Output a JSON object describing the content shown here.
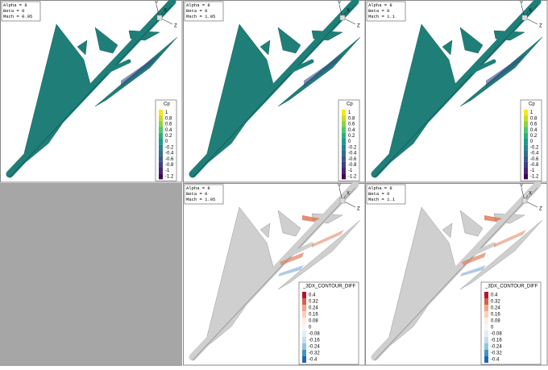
{
  "panels": [
    {
      "info": [
        "Alpha = 8",
        "Beta = 0",
        "Mach = 0.95"
      ],
      "axes": [
        "Y",
        "X",
        "Z"
      ],
      "legend": {
        "title": "Cp",
        "ticks": [
          "1",
          "0.8",
          "0.6",
          "0.4",
          "0.2",
          "0",
          "-0.2",
          "-0.4",
          "-0.6",
          "-0.8",
          "-1",
          "-1.2"
        ]
      }
    },
    {
      "info": [
        "Alpha = 8",
        "Beta = 0",
        "Mach = 1.05"
      ],
      "axes": [
        "Y",
        "X",
        "Z"
      ],
      "legend": {
        "title": "Cp",
        "ticks": [
          "1",
          "0.8",
          "0.6",
          "0.4",
          "0.2",
          "0",
          "-0.2",
          "-0.4",
          "-0.6",
          "-0.8",
          "-1",
          "-1.2"
        ]
      }
    },
    {
      "info": [
        "Alpha = 8",
        "Beta = 0",
        "Mach = 1.1"
      ],
      "axes": [
        "Y",
        "X",
        "Z"
      ],
      "legend": {
        "title": "Cp",
        "ticks": [
          "1",
          "0.8",
          "0.6",
          "0.4",
          "0.2",
          "0",
          "-0.2",
          "-0.4",
          "-0.6",
          "-0.8",
          "-1",
          "-1.2"
        ]
      }
    },
    {
      "info": [
        "Alpha = 8",
        "Beta = 0",
        "Mach = 1.05"
      ],
      "axes": [
        "Y",
        "X",
        "Z"
      ],
      "legend": {
        "title": "_3DX_CONTOUR_DIFF",
        "ticks": [
          "0.4",
          "0.32",
          "0.24",
          "0.16",
          "0.08",
          "0",
          "-0.08",
          "-0.16",
          "-0.24",
          "-0.32",
          "-0.4"
        ]
      }
    },
    {
      "info": [
        "Alpha = 8",
        "Beta = 0",
        "Mach = 1.1"
      ],
      "axes": [
        "Y",
        "X",
        "Z"
      ],
      "legend": {
        "title": "_3DX_CONTOUR_DIFF",
        "ticks": [
          "0.4",
          "0.32",
          "0.24",
          "0.16",
          "0.08",
          "0",
          "-0.08",
          "-0.16",
          "-0.24",
          "-0.32",
          "-0.4"
        ]
      }
    }
  ]
}
